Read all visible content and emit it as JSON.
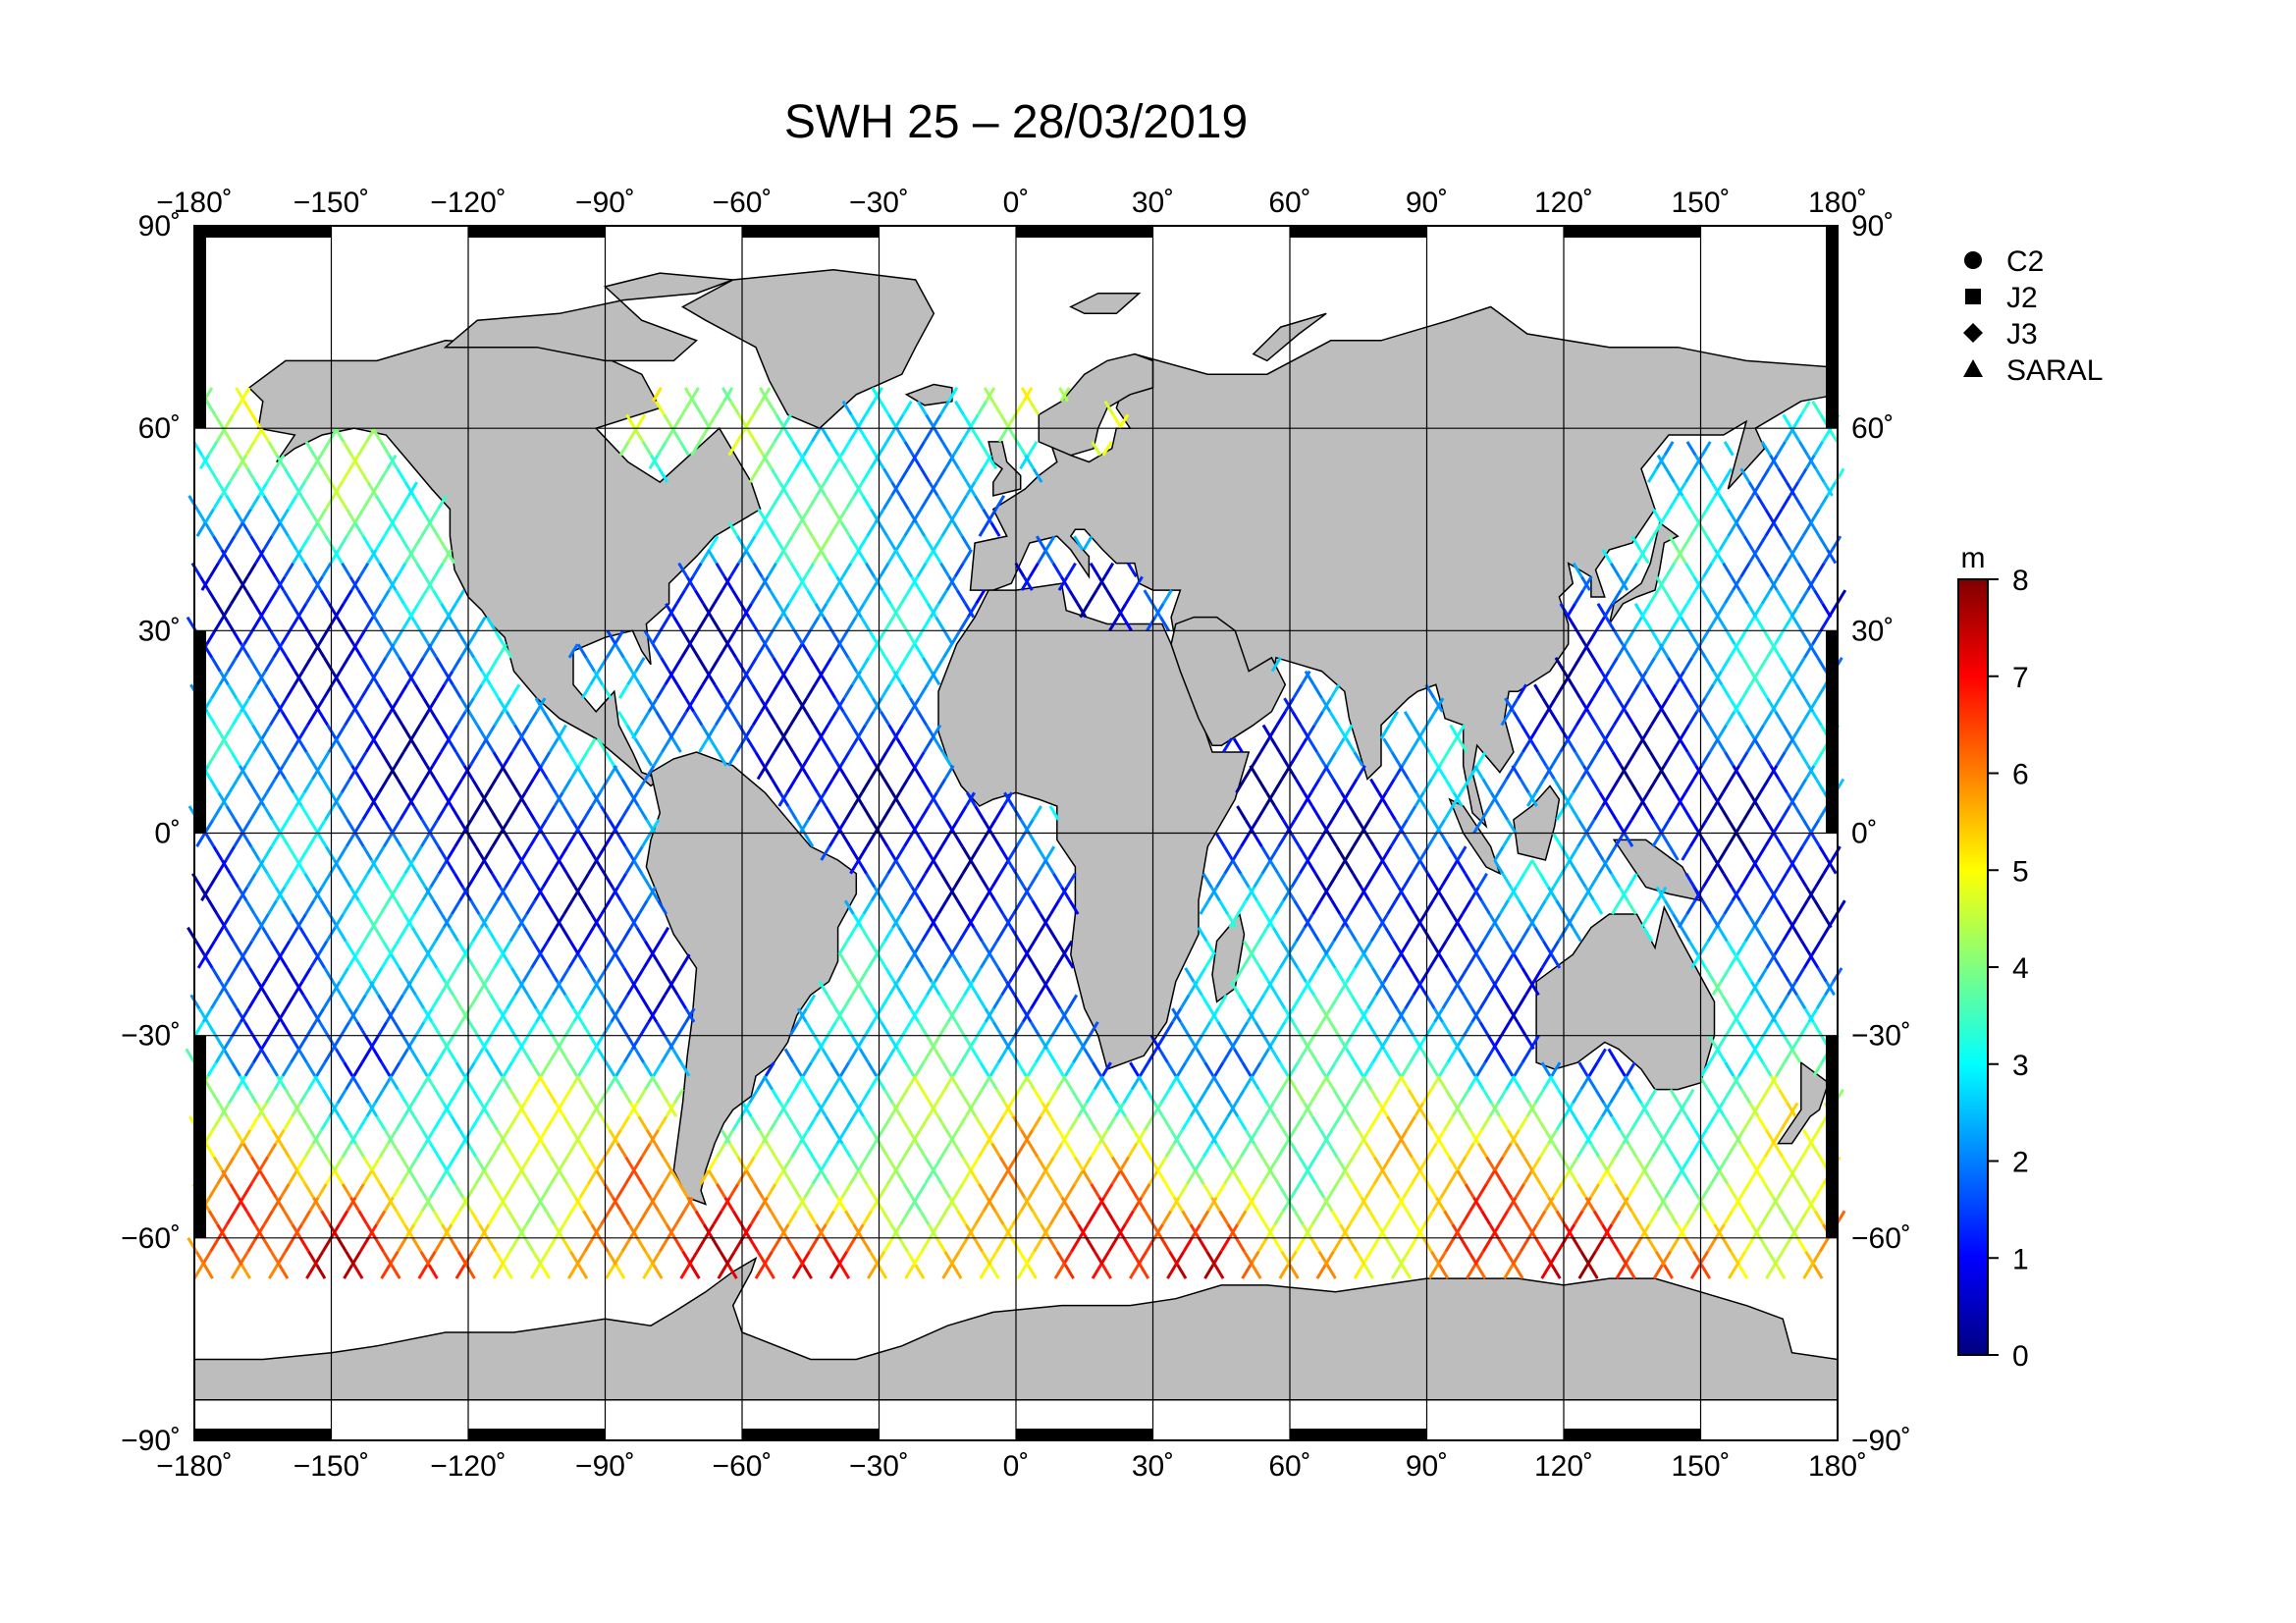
{
  "title": "SWH 25 – 28/03/2019",
  "map": {
    "lon_range": [
      -180,
      180
    ],
    "lat_range": [
      -90,
      90
    ],
    "grid": true,
    "gridline_lon": [
      -150,
      -120,
      -90,
      -60,
      -30,
      0,
      30,
      60,
      90,
      120,
      150
    ],
    "gridline_lat": [
      -60,
      -30,
      0,
      30,
      60
    ],
    "lon_tick_labels": [
      "−180˚",
      "−150˚",
      "−120˚",
      "−90˚",
      "−60˚",
      "−30˚",
      "0˚",
      "30˚",
      "60˚",
      "90˚",
      "120˚",
      "150˚",
      "180˚"
    ],
    "lat_tick_labels": [
      "90˚",
      "60˚",
      "30˚",
      "0˚",
      "−30˚",
      "−60˚",
      "−90˚"
    ],
    "land_color": "#bdbdbd",
    "ocean_color": "#ffffff"
  },
  "legend": {
    "placement": "top-right",
    "items": [
      {
        "label": "C2",
        "marker": "circle"
      },
      {
        "label": "J2",
        "marker": "square"
      },
      {
        "label": "J3",
        "marker": "diamond"
      },
      {
        "label": "SARAL",
        "marker": "triangle"
      }
    ]
  },
  "colorbar": {
    "unit": "m",
    "min": 0,
    "max": 8,
    "tick_labels": [
      "8",
      "7",
      "6",
      "5",
      "4",
      "3",
      "2",
      "1",
      "0"
    ],
    "colormap": "jet",
    "colors": [
      "#00007f",
      "#0000ff",
      "#007fff",
      "#00ffff",
      "#7fff7f",
      "#ffff00",
      "#ff7f00",
      "#ff0000",
      "#7f0000"
    ]
  }
}
